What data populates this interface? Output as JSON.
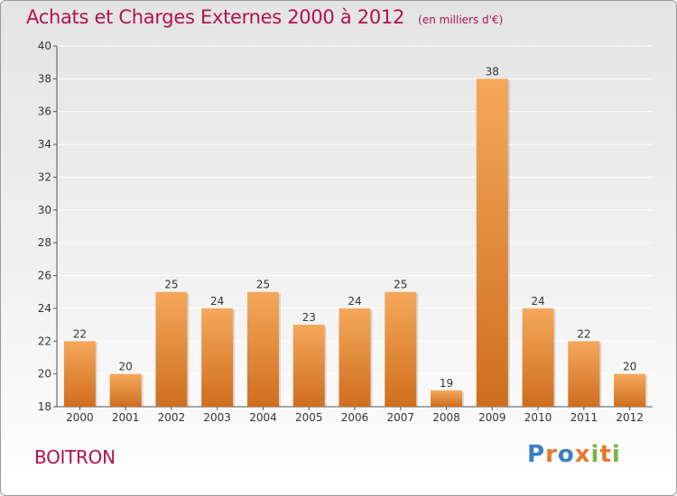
{
  "header": {
    "title": "Achats et Charges Externes 2000 à 2012",
    "unit": "(en milliers d'€)"
  },
  "footer": {
    "commune": "BOITRON",
    "logo_text": "Proxiti",
    "logo_colors": [
      "#3a7fc4",
      "#e8762b",
      "#3a7fc4",
      "#e8762b",
      "#7ab648",
      "#e8762b",
      "#7ab648"
    ]
  },
  "chart_data": {
    "type": "bar",
    "categories": [
      "2000",
      "2001",
      "2002",
      "2003",
      "2004",
      "2005",
      "2006",
      "2007",
      "2008",
      "2009",
      "2010",
      "2011",
      "2012"
    ],
    "values": [
      22,
      20,
      25,
      24,
      25,
      23,
      24,
      25,
      19,
      38,
      24,
      22,
      20
    ],
    "data_labels": [
      "22",
      "20",
      "25",
      "24",
      "25",
      "23",
      "24",
      "25",
      "19",
      "38",
      "24",
      "22",
      "20"
    ],
    "ylim": [
      18,
      40
    ],
    "yticks": [
      18,
      20,
      22,
      24,
      26,
      28,
      30,
      32,
      34,
      36,
      38,
      40
    ],
    "grid": true,
    "bar_color": "#e8873a",
    "bar_color_light": "#f5a85a",
    "bar_color_dark": "#cf6e1f"
  }
}
